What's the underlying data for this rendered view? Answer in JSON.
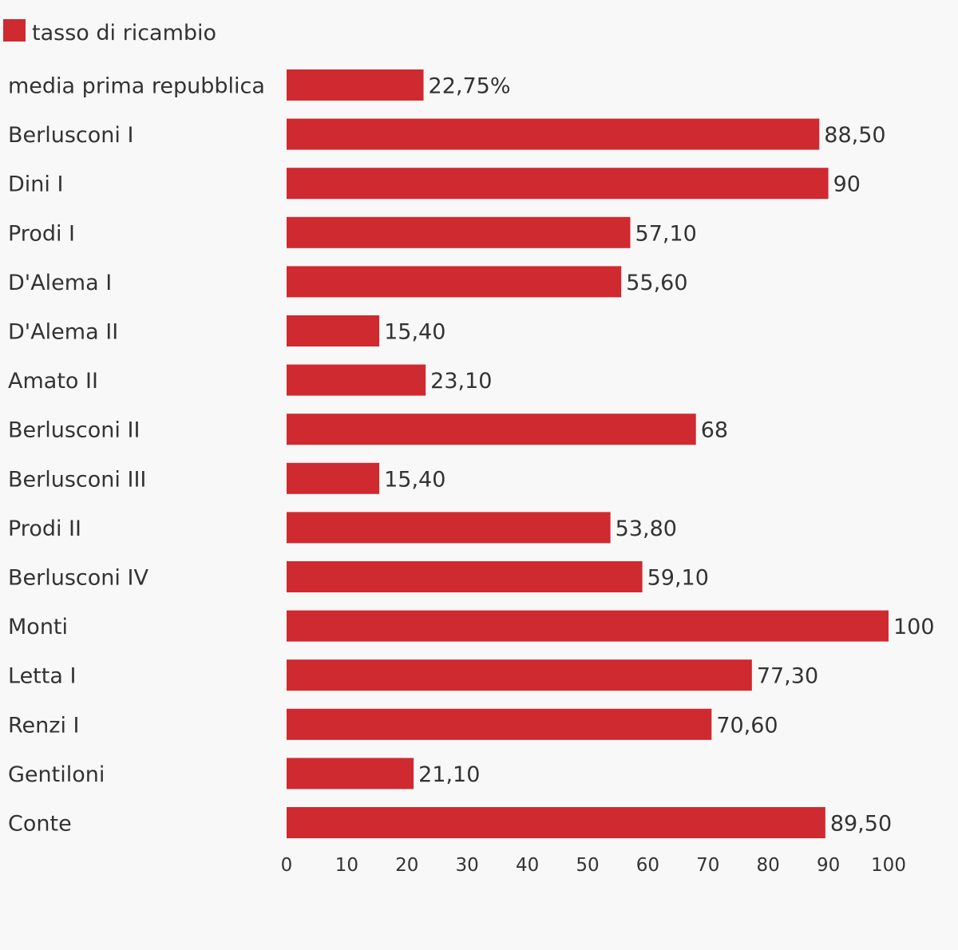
{
  "chart_data": {
    "type": "bar",
    "orientation": "horizontal",
    "title": "",
    "xlabel": "",
    "ylabel": "",
    "xlim": [
      0,
      100
    ],
    "x_ticks": [
      "0",
      "10",
      "20",
      "30",
      "40",
      "50",
      "60",
      "70",
      "80",
      "90",
      "100"
    ],
    "grid": false,
    "legend_position": "top-left",
    "colors": {
      "bar": "#cf2a30",
      "text": "#333333",
      "background": "#f8f8f8"
    },
    "categories": [
      "media prima repubblica",
      "Berlusconi I",
      "Dini I",
      "Prodi I",
      "D'Alema I",
      "D'Alema II",
      "Amato II",
      "Berlusconi II",
      "Berlusconi III",
      "Prodi II",
      "Berlusconi IV",
      "Monti",
      "Letta I",
      "Renzi I",
      "Gentiloni",
      "Conte"
    ],
    "series": [
      {
        "name": "tasso di ricambio",
        "values": [
          22.75,
          88.5,
          90,
          57.1,
          55.6,
          15.4,
          23.1,
          68,
          15.4,
          53.8,
          59.1,
          100,
          77.3,
          70.6,
          21.1,
          89.5
        ],
        "value_labels": [
          "22,75%",
          "88,50",
          "90",
          "57,10",
          "55,60",
          "15,40",
          "23,10",
          "68",
          "15,40",
          "53,80",
          "59,10",
          "100",
          "77,30",
          "70,60",
          "21,10",
          "89,50"
        ]
      }
    ]
  }
}
